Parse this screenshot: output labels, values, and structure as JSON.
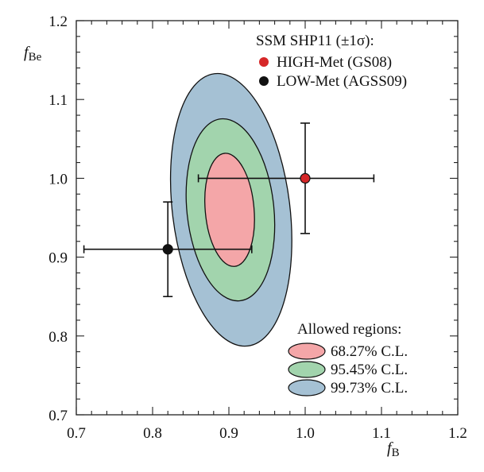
{
  "chart_data": {
    "type": "scatter",
    "xlabel_main": "f",
    "xlabel_sub": "B",
    "ylabel_main": "f",
    "ylabel_sub": "Be",
    "xlim": [
      0.7,
      1.2
    ],
    "ylim": [
      0.7,
      1.2
    ],
    "x_ticks": [
      "0.7",
      "0.8",
      "0.9",
      "1.0",
      "1.1",
      "1.2"
    ],
    "y_ticks": [
      "0.7",
      "0.8",
      "0.9",
      "1.0",
      "1.1",
      "1.2"
    ],
    "x_tick_values": [
      0.7,
      0.8,
      0.9,
      1.0,
      1.1,
      1.2
    ],
    "y_tick_values": [
      0.7,
      0.8,
      0.9,
      1.0,
      1.1,
      1.2
    ],
    "minor_step": 0.02,
    "legend_points": {
      "title": "SSM SHP11 (±1σ):",
      "placement": "top-right",
      "items": [
        {
          "label": "HIGH-Met (GS08)",
          "color": "#d62728"
        },
        {
          "label": "LOW-Met (AGSS09)",
          "color": "#111111"
        }
      ]
    },
    "legend_regions": {
      "title": "Allowed regions:",
      "placement": "bottom-right",
      "items": [
        {
          "label": "68.27% C.L.",
          "color": "#f4a6a8"
        },
        {
          "label": "95.45% C.L.",
          "color": "#a2d4ad"
        },
        {
          "label": "99.73% C.L.",
          "color": "#a5c1d4"
        }
      ]
    },
    "regions": [
      {
        "name": "99.73% C.L.",
        "cx": 0.903,
        "cy": 0.96,
        "rx": 0.077,
        "ry": 0.174,
        "rotation_deg": 7,
        "color": "#a5c1d4"
      },
      {
        "name": "95.45% C.L.",
        "cx": 0.902,
        "cy": 0.96,
        "rx": 0.057,
        "ry": 0.116,
        "rotation_deg": 6,
        "color": "#a2d4ad"
      },
      {
        "name": "68.27% C.L.",
        "cx": 0.901,
        "cy": 0.96,
        "rx": 0.032,
        "ry": 0.072,
        "rotation_deg": 5,
        "color": "#f4a6a8"
      }
    ],
    "points": [
      {
        "name": "HIGH-Met (GS08)",
        "x": 1.0,
        "y": 1.0,
        "x_err": [
          0.86,
          1.09
        ],
        "y_err": [
          0.93,
          1.07
        ],
        "color": "#d62728"
      },
      {
        "name": "LOW-Met (AGSS09)",
        "x": 0.82,
        "y": 0.91,
        "x_err": [
          0.71,
          0.93
        ],
        "y_err": [
          0.85,
          0.97
        ],
        "color": "#111111"
      }
    ]
  }
}
